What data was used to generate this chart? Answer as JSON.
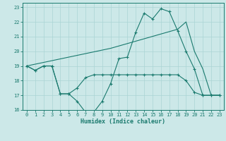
{
  "xlabel": "Humidex (Indice chaleur)",
  "bg_color": "#cce8e8",
  "grid_color": "#aad4d4",
  "line_color": "#1a7a6e",
  "xlim": [
    -0.5,
    23.5
  ],
  "ylim": [
    16,
    23.3
  ],
  "xticks": [
    0,
    1,
    2,
    3,
    4,
    5,
    6,
    7,
    8,
    9,
    10,
    11,
    12,
    13,
    14,
    15,
    16,
    17,
    18,
    19,
    20,
    21,
    22,
    23
  ],
  "yticks": [
    16,
    17,
    18,
    19,
    20,
    21,
    22,
    23
  ],
  "line1_x": [
    0,
    1,
    2,
    3,
    4,
    5,
    6,
    7,
    8,
    9,
    10,
    11,
    12,
    13,
    14,
    15,
    16,
    17,
    18,
    19,
    20,
    21,
    22,
    23
  ],
  "line1_y": [
    19.0,
    18.7,
    19.0,
    19.0,
    17.1,
    17.1,
    16.6,
    15.85,
    15.85,
    16.6,
    17.8,
    19.5,
    19.6,
    21.3,
    22.6,
    22.2,
    22.9,
    22.7,
    21.4,
    20.0,
    18.8,
    17.0,
    17.0,
    17.0
  ],
  "line2_x": [
    0,
    1,
    2,
    3,
    4,
    5,
    6,
    7,
    8,
    9,
    10,
    11,
    12,
    13,
    14,
    15,
    16,
    17,
    18,
    19,
    20,
    21,
    22,
    23
  ],
  "line2_y": [
    19.0,
    18.7,
    19.0,
    19.0,
    17.1,
    17.1,
    17.5,
    18.2,
    18.4,
    18.4,
    18.4,
    18.4,
    18.4,
    18.4,
    18.4,
    18.4,
    18.4,
    18.4,
    18.4,
    18.0,
    17.2,
    17.0,
    17.0,
    17.0
  ],
  "line3_x": [
    0,
    10,
    18,
    19,
    20,
    21,
    22,
    23
  ],
  "line3_y": [
    19.0,
    20.2,
    21.5,
    22.0,
    20.0,
    18.8,
    17.0,
    17.0
  ]
}
